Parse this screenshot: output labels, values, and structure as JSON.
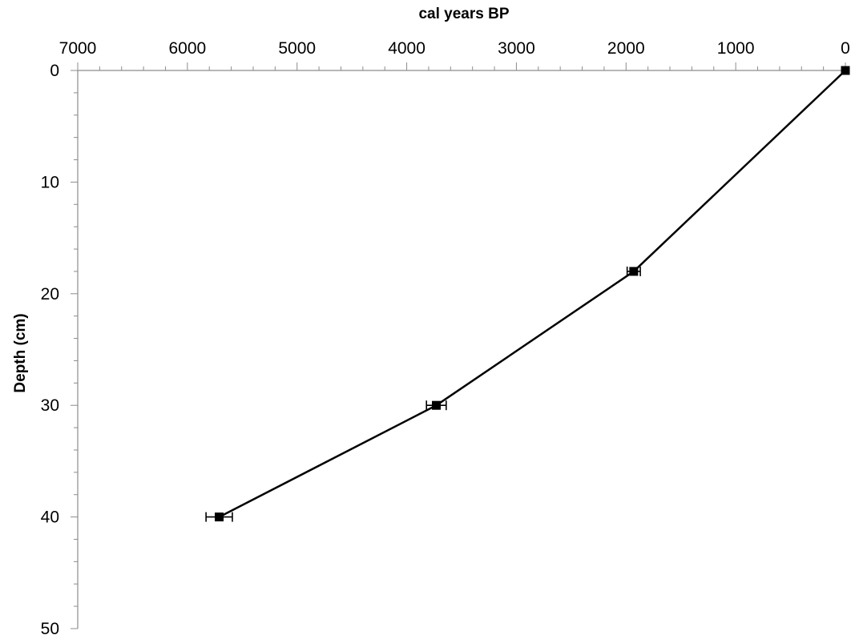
{
  "chart_data": {
    "type": "line",
    "title": "",
    "xlabel": "cal years BP",
    "ylabel": "Depth (cm)",
    "x_axis_position": "top",
    "x_reversed": true,
    "y_reversed": true,
    "xlim": [
      0,
      7000
    ],
    "ylim": [
      0,
      50
    ],
    "x_major_ticks": [
      7000,
      6000,
      5000,
      4000,
      3000,
      2000,
      1000,
      0
    ],
    "x_tick_labels": [
      "7000",
      "6000",
      "5000",
      "4000",
      "3000",
      "2000",
      "1000",
      "0"
    ],
    "y_major_ticks": [
      0,
      10,
      20,
      30,
      40,
      50
    ],
    "y_tick_labels": [
      "0",
      "10",
      "20",
      "30",
      "40",
      "50"
    ],
    "x_minor_step": 200,
    "y_minor_step": 2,
    "grid": false,
    "legend": "none",
    "marker": "square",
    "line_color": "#000000",
    "series": [
      {
        "x": [
          0,
          1930,
          3730,
          5710
        ],
        "y": [
          0,
          18,
          30,
          40
        ],
        "x_error": [
          0,
          60,
          90,
          120
        ]
      }
    ]
  }
}
